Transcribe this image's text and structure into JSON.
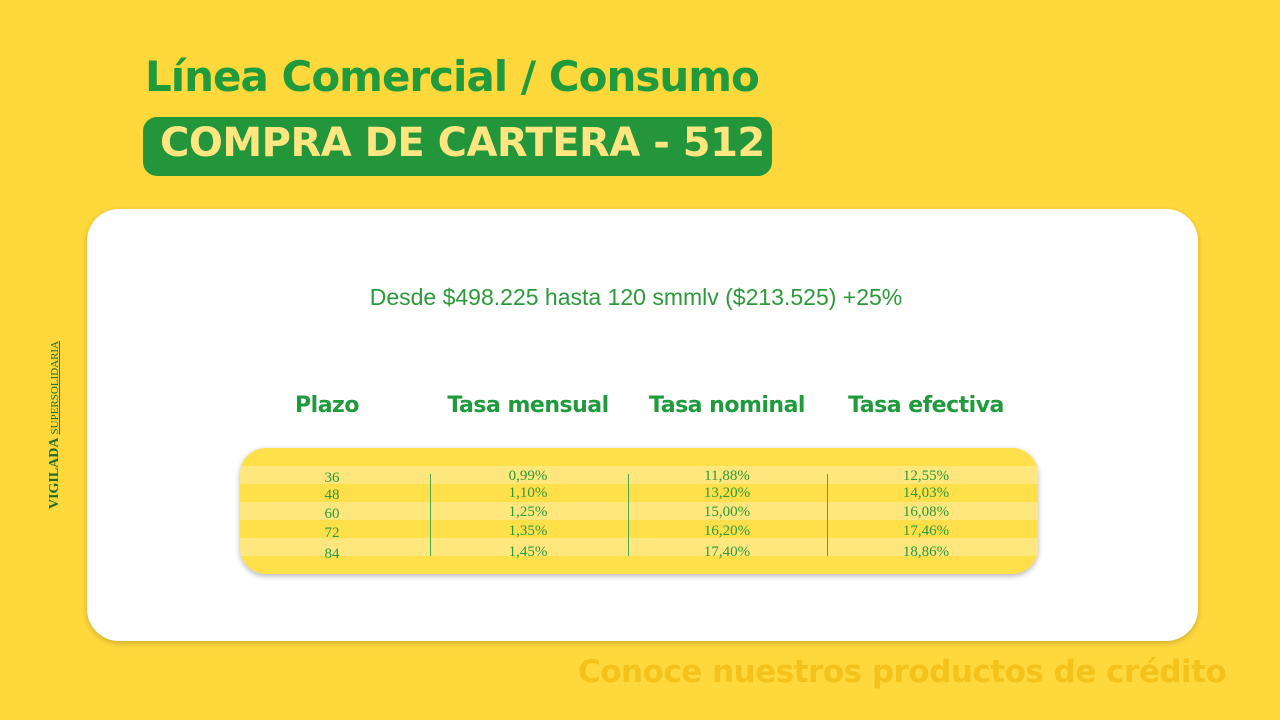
{
  "header": {
    "title": "Línea Comercial / Consumo",
    "subtitle": "COMPRA DE CARTERA - 512"
  },
  "card": {
    "range": "Desde $498.225 hasta 120 smmlv ($213.525) +25%"
  },
  "table": {
    "columns": [
      "Plazo",
      "Tasa mensual",
      "Tasa nominal",
      "Tasa efectiva"
    ],
    "rows": [
      [
        "36",
        "0,99%",
        "11,88%",
        "12,55%"
      ],
      [
        "48",
        "1,10%",
        "13,20%",
        "14,03%"
      ],
      [
        "60",
        "1,25%",
        "15,00%",
        "16,08%"
      ],
      [
        "72",
        "1,35%",
        "16,20%",
        "17,46%"
      ],
      [
        "84",
        "1,45%",
        "17,40%",
        "18,86%"
      ]
    ]
  },
  "footer": "Conoce nuestros productos de crédito",
  "sidebar": {
    "vigilada": "VIGILADA",
    "entity": "SUPERSOLIDARIA"
  }
}
